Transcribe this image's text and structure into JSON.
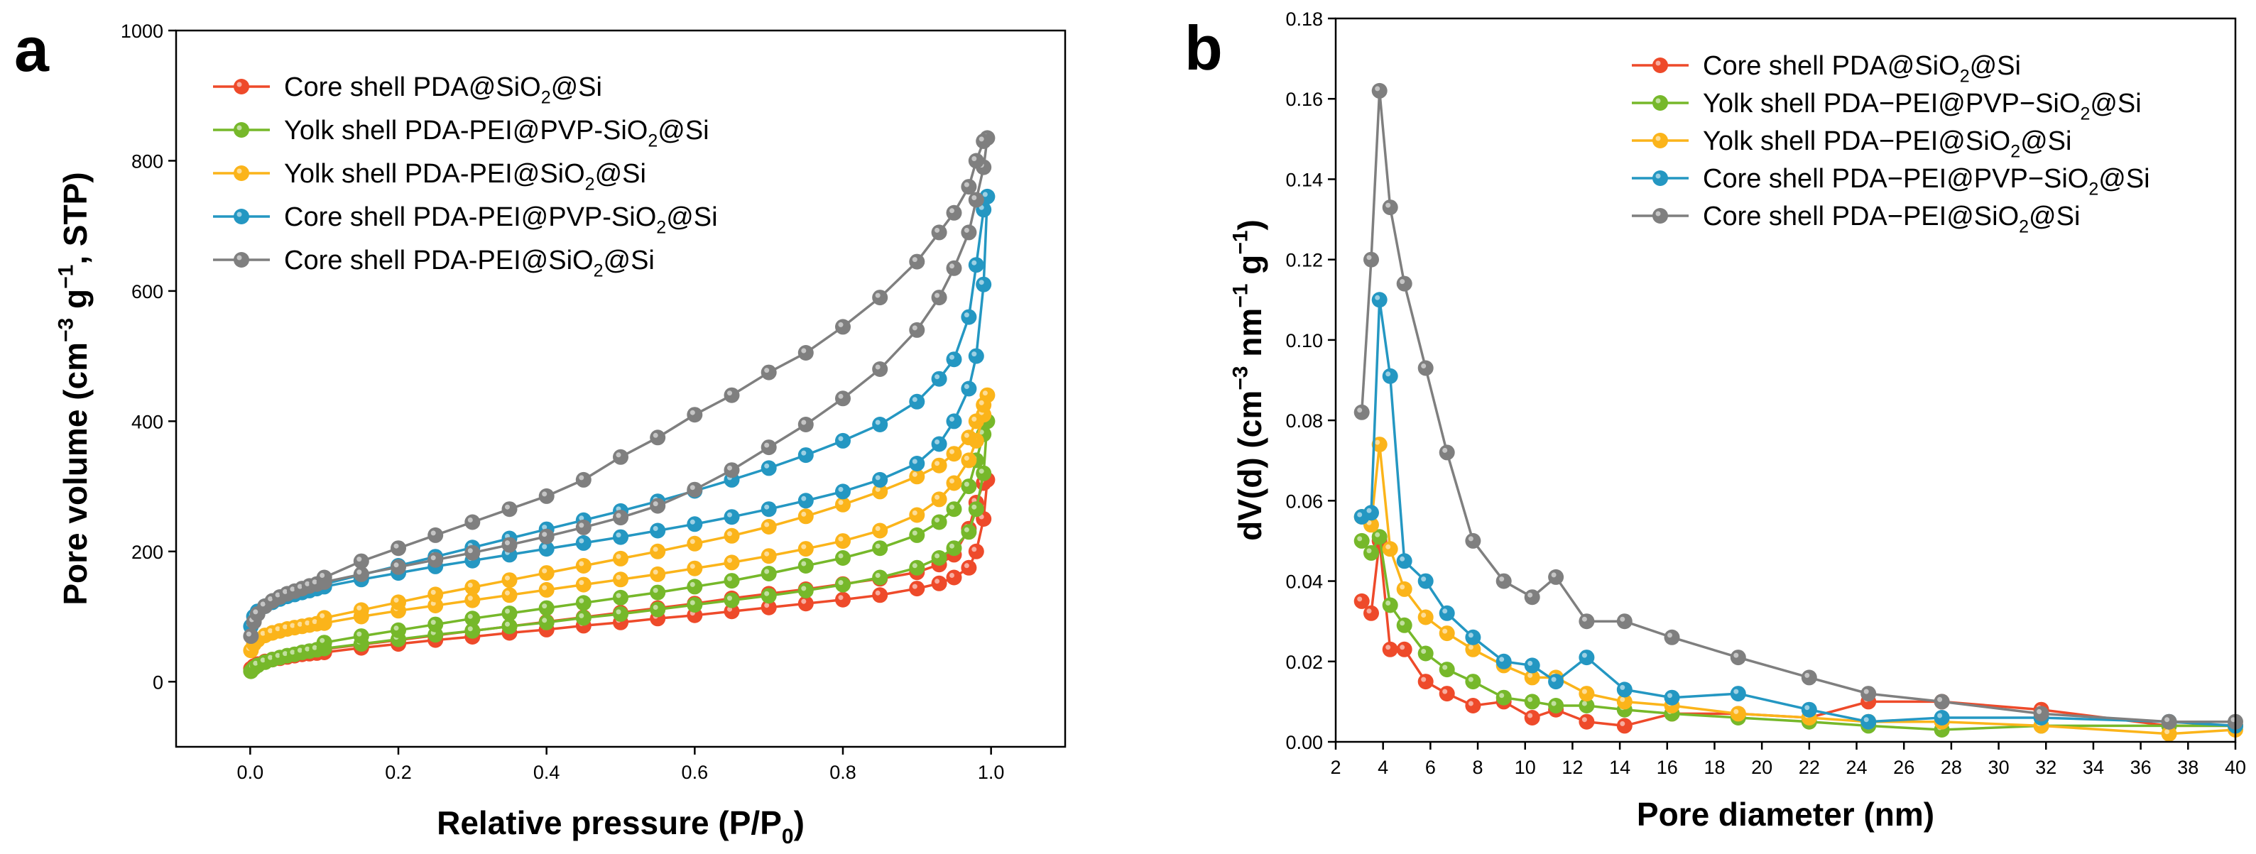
{
  "figure": {
    "panels": [
      "a",
      "b"
    ]
  },
  "chart_data": [
    {
      "panel": "a",
      "type": "line",
      "title": "",
      "xlabel": "Relative pressure (P/P0)",
      "xlabel_main": "Relative pressure (P/P",
      "xlabel_sub": "0",
      "xlabel_end": ")",
      "ylabel": "Pore volume (cm−3 g−1, STP)",
      "ylabel_parts": [
        "Pore volume (cm",
        "−3",
        " g",
        "−1",
        ", STP)"
      ],
      "xlim": [
        -0.1,
        1.1
      ],
      "ylim": [
        -100,
        1000
      ],
      "xticks": [
        0.0,
        0.2,
        0.4,
        0.6,
        0.8,
        1.0
      ],
      "xtick_labels": [
        "0.0",
        "0.2",
        "0.4",
        "0.6",
        "0.8",
        "1.0"
      ],
      "yticks": [
        0,
        200,
        400,
        600,
        800,
        1000
      ],
      "ytick_labels": [
        "0",
        "200",
        "400",
        "600",
        "800",
        "1000"
      ],
      "legend_position": "top-left",
      "series": [
        {
          "name": "Core shell PDA@SiO2@Si",
          "label_parts": [
            "Core shell PDA@SiO",
            "2",
            "@Si"
          ],
          "color": "#ee4a2a",
          "x": [
            0.001,
            0.005,
            0.01,
            0.02,
            0.03,
            0.04,
            0.05,
            0.06,
            0.07,
            0.08,
            0.09,
            0.1,
            0.15,
            0.2,
            0.25,
            0.3,
            0.35,
            0.4,
            0.45,
            0.5,
            0.55,
            0.6,
            0.65,
            0.7,
            0.75,
            0.8,
            0.85,
            0.9,
            0.93,
            0.95,
            0.97,
            0.98,
            0.99,
            0.995,
            0.99,
            0.98,
            0.97,
            0.95,
            0.93,
            0.9,
            0.85,
            0.8,
            0.75,
            0.7,
            0.65,
            0.6,
            0.55,
            0.5,
            0.45,
            0.4,
            0.35,
            0.3,
            0.25,
            0.2,
            0.15,
            0.1
          ],
          "y": [
            20,
            24,
            27,
            31,
            34,
            36,
            38,
            40,
            42,
            43,
            44,
            45,
            52,
            58,
            64,
            69,
            75,
            80,
            86,
            91,
            97,
            102,
            108,
            114,
            120,
            126,
            133,
            143,
            151,
            160,
            175,
            200,
            250,
            310,
            305,
            275,
            235,
            195,
            180,
            168,
            158,
            150,
            142,
            135,
            128,
            120,
            113,
            106,
            99,
            92,
            85,
            78,
            71,
            64,
            57,
            50
          ]
        },
        {
          "name": "Yolk shell PDA-PEI@PVP-SiO2@Si",
          "label_parts": [
            "Yolk shell PDA-PEI@PVP-SiO",
            "2",
            "@Si"
          ],
          "color": "#76b82a",
          "x": [
            0.001,
            0.005,
            0.01,
            0.02,
            0.03,
            0.04,
            0.05,
            0.06,
            0.07,
            0.08,
            0.09,
            0.1,
            0.15,
            0.2,
            0.25,
            0.3,
            0.35,
            0.4,
            0.45,
            0.5,
            0.55,
            0.6,
            0.65,
            0.7,
            0.75,
            0.8,
            0.85,
            0.9,
            0.93,
            0.95,
            0.97,
            0.98,
            0.99,
            0.995,
            0.99,
            0.98,
            0.97,
            0.95,
            0.93,
            0.9,
            0.85,
            0.8,
            0.75,
            0.7,
            0.65,
            0.6,
            0.55,
            0.5,
            0.45,
            0.4,
            0.35,
            0.3,
            0.25,
            0.2,
            0.15,
            0.1
          ],
          "y": [
            16,
            21,
            25,
            30,
            34,
            37,
            40,
            42,
            45,
            47,
            49,
            51,
            58,
            65,
            72,
            78,
            85,
            91,
            98,
            104,
            111,
            118,
            125,
            132,
            140,
            149,
            160,
            175,
            190,
            205,
            230,
            265,
            320,
            400,
            380,
            340,
            300,
            265,
            245,
            225,
            205,
            190,
            178,
            166,
            155,
            146,
            137,
            129,
            121,
            113,
            105,
            97,
            88,
            79,
            70,
            60
          ]
        },
        {
          "name": "Yolk shell PDA-PEI@SiO2@Si",
          "label_parts": [
            "Yolk shell PDA-PEI@SiO",
            "2",
            "@Si"
          ],
          "color": "#fbb41a",
          "x": [
            0.001,
            0.005,
            0.01,
            0.02,
            0.03,
            0.04,
            0.05,
            0.06,
            0.07,
            0.08,
            0.09,
            0.1,
            0.15,
            0.2,
            0.25,
            0.3,
            0.35,
            0.4,
            0.45,
            0.5,
            0.55,
            0.6,
            0.65,
            0.7,
            0.75,
            0.8,
            0.85,
            0.9,
            0.93,
            0.95,
            0.97,
            0.98,
            0.99,
            0.995,
            0.99,
            0.98,
            0.97,
            0.95,
            0.93,
            0.9,
            0.85,
            0.8,
            0.75,
            0.7,
            0.65,
            0.6,
            0.55,
            0.5,
            0.45,
            0.4,
            0.35,
            0.3,
            0.25,
            0.2,
            0.15,
            0.1
          ],
          "y": [
            48,
            58,
            64,
            71,
            75,
            78,
            81,
            83,
            85,
            87,
            89,
            90,
            100,
            109,
            117,
            125,
            133,
            141,
            149,
            157,
            165,
            174,
            183,
            193,
            204,
            216,
            232,
            256,
            280,
            305,
            340,
            370,
            410,
            440,
            425,
            400,
            375,
            350,
            332,
            315,
            292,
            272,
            254,
            238,
            224,
            212,
            200,
            189,
            178,
            167,
            156,
            145,
            134,
            122,
            110,
            98
          ]
        },
        {
          "name": "Core shell PDA-PEI@PVP-SiO2@Si",
          "label_parts": [
            "Core shell PDA-PEI@PVP-SiO",
            "2",
            "@Si"
          ],
          "color": "#2497c2",
          "x": [
            0.001,
            0.005,
            0.01,
            0.02,
            0.03,
            0.04,
            0.05,
            0.06,
            0.07,
            0.08,
            0.09,
            0.1,
            0.15,
            0.2,
            0.25,
            0.3,
            0.35,
            0.4,
            0.45,
            0.5,
            0.55,
            0.6,
            0.65,
            0.7,
            0.75,
            0.8,
            0.85,
            0.9,
            0.93,
            0.95,
            0.97,
            0.98,
            0.99,
            0.995,
            0.99,
            0.98,
            0.97,
            0.95,
            0.93,
            0.9,
            0.85,
            0.8,
            0.75,
            0.7,
            0.65,
            0.6,
            0.55,
            0.5,
            0.45,
            0.4,
            0.35,
            0.3,
            0.25,
            0.2,
            0.15,
            0.1
          ],
          "y": [
            85,
            100,
            108,
            116,
            122,
            127,
            131,
            134,
            137,
            140,
            143,
            146,
            157,
            167,
            177,
            186,
            195,
            204,
            213,
            222,
            232,
            242,
            253,
            265,
            278,
            292,
            310,
            335,
            365,
            400,
            450,
            500,
            610,
            745,
            725,
            640,
            560,
            495,
            465,
            430,
            395,
            370,
            348,
            328,
            310,
            293,
            277,
            262,
            248,
            234,
            220,
            206,
            192,
            178,
            164,
            150
          ]
        },
        {
          "name": "Core shell PDA-PEI@SiO2@Si",
          "label_parts": [
            "Core shell PDA-PEI@SiO",
            "2",
            "@Si"
          ],
          "color": "#7f7f7f",
          "x": [
            0.001,
            0.005,
            0.01,
            0.02,
            0.03,
            0.04,
            0.05,
            0.06,
            0.07,
            0.08,
            0.09,
            0.1,
            0.15,
            0.2,
            0.25,
            0.3,
            0.35,
            0.4,
            0.45,
            0.5,
            0.55,
            0.6,
            0.65,
            0.7,
            0.75,
            0.8,
            0.85,
            0.9,
            0.93,
            0.95,
            0.97,
            0.98,
            0.99,
            0.995,
            0.99,
            0.98,
            0.97,
            0.95,
            0.93,
            0.9,
            0.85,
            0.8,
            0.75,
            0.7,
            0.65,
            0.6,
            0.55,
            0.5,
            0.45,
            0.4,
            0.35,
            0.3,
            0.25,
            0.2,
            0.15,
            0.1
          ],
          "y": [
            70,
            92,
            104,
            116,
            124,
            130,
            135,
            139,
            143,
            147,
            150,
            153,
            165,
            176,
            187,
            198,
            210,
            223,
            237,
            252,
            270,
            295,
            325,
            360,
            395,
            435,
            480,
            540,
            590,
            635,
            690,
            740,
            790,
            835,
            830,
            800,
            760,
            720,
            690,
            645,
            590,
            545,
            505,
            475,
            440,
            410,
            375,
            345,
            310,
            285,
            265,
            245,
            225,
            205,
            185,
            160
          ]
        }
      ]
    },
    {
      "panel": "b",
      "type": "line",
      "title": "",
      "xlabel": "Pore diameter (nm)",
      "ylabel": "dV(d) (cm−3 nm−1 g−1)",
      "ylabel_parts": [
        "dV(d) (cm",
        "−3",
        " nm",
        "−1",
        " g",
        "−1",
        ")"
      ],
      "xlim": [
        2,
        40
      ],
      "ylim": [
        0,
        0.18
      ],
      "xticks": [
        2,
        4,
        6,
        8,
        10,
        12,
        14,
        16,
        18,
        20,
        22,
        24,
        26,
        28,
        30,
        32,
        34,
        36,
        38,
        40
      ],
      "xtick_labels": [
        "2",
        "4",
        "6",
        "8",
        "10",
        "12",
        "14",
        "16",
        "18",
        "20",
        "22",
        "24",
        "26",
        "28",
        "30",
        "32",
        "34",
        "36",
        "38",
        "40"
      ],
      "yticks": [
        0.0,
        0.02,
        0.04,
        0.06,
        0.08,
        0.1,
        0.12,
        0.14,
        0.16,
        0.18
      ],
      "ytick_labels": [
        "0.00",
        "0.02",
        "0.04",
        "0.06",
        "0.08",
        "0.10",
        "0.12",
        "0.14",
        "0.16",
        "0.18"
      ],
      "legend_position": "top-right",
      "series": [
        {
          "name": "Core shell PDA@SiO2@Si",
          "label_parts": [
            "Core shell PDA@SiO",
            "2",
            "@Si"
          ],
          "color": "#ee4a2a",
          "x": [
            3.1,
            3.5,
            3.85,
            4.3,
            4.9,
            5.8,
            6.7,
            7.8,
            9.1,
            10.3,
            11.3,
            12.6,
            14.2,
            16.2,
            19.0,
            22.0,
            24.5,
            27.6,
            31.8,
            37.2,
            40.0
          ],
          "y": [
            0.035,
            0.032,
            0.05,
            0.023,
            0.023,
            0.015,
            0.012,
            0.009,
            0.01,
            0.006,
            0.008,
            0.005,
            0.004,
            0.007,
            0.007,
            0.006,
            0.01,
            0.01,
            0.008,
            0.004,
            0.004
          ]
        },
        {
          "name": "Yolk shell PDA−PEI@PVP−SiO2@Si",
          "label_parts": [
            "Yolk shell PDA−PEI@PVP−SiO",
            "2",
            "@Si"
          ],
          "color": "#76b82a",
          "x": [
            3.1,
            3.5,
            3.85,
            4.3,
            4.9,
            5.8,
            6.7,
            7.8,
            9.1,
            10.3,
            11.3,
            12.6,
            14.2,
            16.2,
            19.0,
            22.0,
            24.5,
            27.6,
            31.8,
            37.2,
            40.0
          ],
          "y": [
            0.05,
            0.047,
            0.051,
            0.034,
            0.029,
            0.022,
            0.018,
            0.015,
            0.011,
            0.01,
            0.009,
            0.009,
            0.008,
            0.007,
            0.006,
            0.005,
            0.004,
            0.003,
            0.004,
            0.004,
            0.004
          ]
        },
        {
          "name": "Yolk shell PDA−PEI@SiO2@Si",
          "label_parts": [
            "Yolk shell PDA−PEI@SiO",
            "2",
            "@Si"
          ],
          "color": "#fbb41a",
          "x": [
            3.1,
            3.5,
            3.85,
            4.3,
            4.9,
            5.8,
            6.7,
            7.8,
            9.1,
            10.3,
            11.3,
            12.6,
            14.2,
            16.2,
            19.0,
            22.0,
            24.5,
            27.6,
            31.8,
            37.2,
            40.0
          ],
          "y": [
            0.056,
            0.054,
            0.074,
            0.048,
            0.038,
            0.031,
            0.027,
            0.023,
            0.019,
            0.016,
            0.016,
            0.012,
            0.01,
            0.009,
            0.007,
            0.006,
            0.005,
            0.005,
            0.004,
            0.002,
            0.003
          ]
        },
        {
          "name": "Core shell PDA−PEI@PVP−SiO2@Si",
          "label_parts": [
            "Core shell PDA−PEI@PVP−SiO",
            "2",
            "@Si"
          ],
          "color": "#2497c2",
          "x": [
            3.1,
            3.5,
            3.85,
            4.3,
            4.9,
            5.8,
            6.7,
            7.8,
            9.1,
            10.3,
            11.3,
            12.6,
            14.2,
            16.2,
            19.0,
            22.0,
            24.5,
            27.6,
            31.8,
            37.2,
            40.0
          ],
          "y": [
            0.056,
            0.057,
            0.11,
            0.091,
            0.045,
            0.04,
            0.032,
            0.026,
            0.02,
            0.019,
            0.015,
            0.021,
            0.013,
            0.011,
            0.012,
            0.008,
            0.005,
            0.006,
            0.006,
            0.005,
            0.004
          ]
        },
        {
          "name": "Core shell PDA−PEI@SiO2@Si",
          "label_parts": [
            "Core shell PDA−PEI@SiO",
            "2",
            "@Si"
          ],
          "color": "#7f7f7f",
          "x": [
            3.1,
            3.5,
            3.85,
            4.3,
            4.9,
            5.8,
            6.7,
            7.8,
            9.1,
            10.3,
            11.3,
            12.6,
            14.2,
            16.2,
            19.0,
            22.0,
            24.5,
            27.6,
            31.8,
            37.2,
            40.0
          ],
          "y": [
            0.082,
            0.12,
            0.162,
            0.133,
            0.114,
            0.093,
            0.072,
            0.05,
            0.04,
            0.036,
            0.041,
            0.03,
            0.03,
            0.026,
            0.021,
            0.016,
            0.012,
            0.01,
            0.007,
            0.005,
            0.005
          ]
        }
      ]
    }
  ]
}
